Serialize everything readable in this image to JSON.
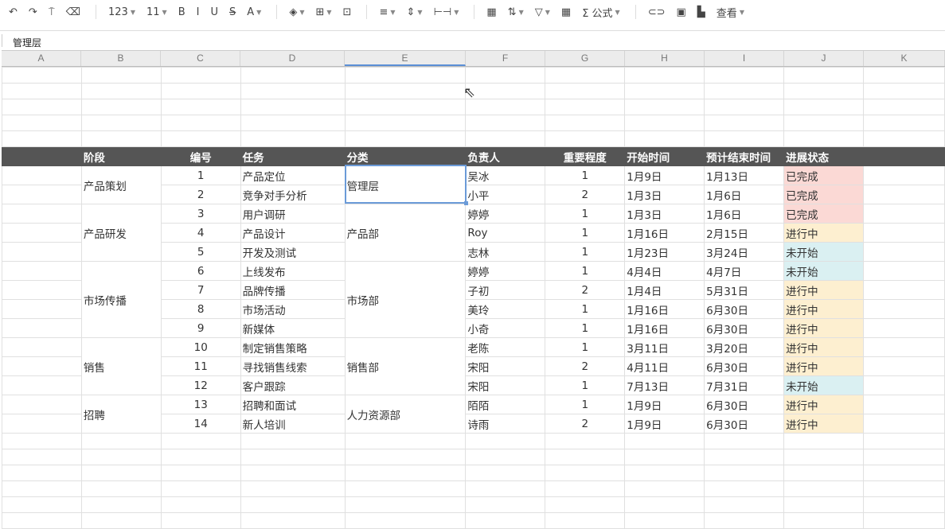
{
  "toolbar": {
    "items": [
      {
        "icon": "undo-icon",
        "glyph": "↶"
      },
      {
        "icon": "redo-icon",
        "glyph": "↷"
      },
      {
        "icon": "format-painter-icon",
        "glyph": "⍑"
      },
      {
        "icon": "eraser-icon",
        "glyph": "⌫"
      },
      {
        "sep": true
      },
      {
        "label": "123",
        "dd": true
      },
      {
        "label": "11",
        "dd": true
      },
      {
        "icon": "bold-icon",
        "glyph": "B"
      },
      {
        "icon": "italic-icon",
        "glyph": "I"
      },
      {
        "icon": "underline-icon",
        "glyph": "U"
      },
      {
        "icon": "strikethrough-icon",
        "glyph": "S̶"
      },
      {
        "icon": "font-color-icon",
        "glyph": "A",
        "dd": true
      },
      {
        "sep": true
      },
      {
        "icon": "fill-color-icon",
        "glyph": "◈",
        "dd": true
      },
      {
        "icon": "borders-icon",
        "glyph": "⊞",
        "dd": true
      },
      {
        "icon": "merge-cells-icon",
        "glyph": "⊡"
      },
      {
        "sep": true
      },
      {
        "icon": "align-left-icon",
        "glyph": "≡",
        "dd": true
      },
      {
        "icon": "vertical-align-icon",
        "glyph": "⇕",
        "dd": true
      },
      {
        "icon": "text-wrap-icon",
        "glyph": "⊢⊣",
        "dd": true
      },
      {
        "sep": true
      },
      {
        "icon": "conditional-format-icon",
        "glyph": "▦"
      },
      {
        "icon": "sort-icon",
        "glyph": "⇅",
        "dd": true
      },
      {
        "icon": "filter-icon",
        "glyph": "▽",
        "dd": true
      },
      {
        "icon": "freeze-icon",
        "glyph": "▦"
      },
      {
        "icon": "sum-icon",
        "label": "Σ 公式",
        "dd": true
      },
      {
        "sep": true
      },
      {
        "icon": "link-icon",
        "glyph": "⊂⊃"
      },
      {
        "icon": "image-icon",
        "glyph": "▣"
      },
      {
        "icon": "comment-icon",
        "glyph": "▙"
      },
      {
        "label": "查看",
        "dd": true
      }
    ]
  },
  "formula_bar": {
    "value": "管理层"
  },
  "columns": [
    "A",
    "B",
    "C",
    "D",
    "E",
    "F",
    "G",
    "H",
    "I",
    "J",
    "K"
  ],
  "selected_column": "E",
  "table": {
    "headers": [
      "阶段",
      "编号",
      "任务",
      "分类",
      "负责人",
      "重要程度",
      "开始时间",
      "预计结束时间",
      "进展状态"
    ],
    "groups": [
      {
        "stage": "产品策划",
        "dept": "管理层",
        "size": 2
      },
      {
        "stage": "产品研发",
        "dept": "产品部",
        "size": 3
      },
      {
        "stage": "市场传播",
        "dept": "市场部",
        "size": 4
      },
      {
        "stage": "销售",
        "dept": "销售部",
        "size": 3
      },
      {
        "stage": "招聘",
        "dept": "人力资源部",
        "size": 2
      }
    ],
    "rows": [
      [
        "1",
        "产品定位",
        "吴冰",
        "1",
        "1月9日",
        "1月13日",
        "已完成"
      ],
      [
        "2",
        "竞争对手分析",
        "小平",
        "2",
        "1月3日",
        "1月6日",
        "已完成"
      ],
      [
        "3",
        "用户调研",
        "婷婷",
        "1",
        "1月3日",
        "1月6日",
        "已完成"
      ],
      [
        "4",
        "产品设计",
        "Roy",
        "1",
        "1月16日",
        "2月15日",
        "进行中"
      ],
      [
        "5",
        "开发及测试",
        "志林",
        "1",
        "1月23日",
        "3月24日",
        "未开始"
      ],
      [
        "6",
        "上线发布",
        "婷婷",
        "1",
        "4月4日",
        "4月7日",
        "未开始"
      ],
      [
        "7",
        "品牌传播",
        "子初",
        "2",
        "1月4日",
        "5月31日",
        "进行中"
      ],
      [
        "8",
        "市场活动",
        "美玲",
        "1",
        "1月16日",
        "6月30日",
        "进行中"
      ],
      [
        "9",
        "新媒体",
        "小奇",
        "1",
        "1月16日",
        "6月30日",
        "进行中"
      ],
      [
        "10",
        "制定销售策略",
        "老陈",
        "1",
        "3月11日",
        "3月20日",
        "进行中"
      ],
      [
        "11",
        "寻找销售线索",
        "宋阳",
        "2",
        "4月11日",
        "6月30日",
        "进行中"
      ],
      [
        "12",
        "客户跟踪",
        "宋阳",
        "1",
        "7月13日",
        "7月31日",
        "未开始"
      ],
      [
        "13",
        "招聘和面试",
        "陌陌",
        "1",
        "1月9日",
        "6月30日",
        "进行中"
      ],
      [
        "14",
        "新人培训",
        "诗雨",
        "2",
        "1月9日",
        "6月30日",
        "进行中"
      ]
    ]
  },
  "colors": {
    "header_bg": "#555555",
    "已完成": "#fbd9d5",
    "进行中": "#fdefd0",
    "未开始": "#daf0f2",
    "selection": "#6b9bd8"
  }
}
